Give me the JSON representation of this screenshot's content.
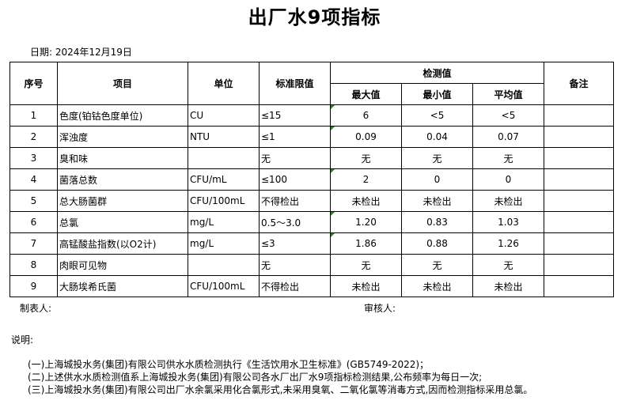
{
  "title": "出厂水9项指标",
  "date": "日期: 2024年12月19日",
  "headers": {
    "no": "序号",
    "item": "项目",
    "unit": "单位",
    "limit": "标准限值",
    "detect": "检测值",
    "max": "最大值",
    "min": "最小值",
    "avg": "平均值",
    "remark": "备注"
  },
  "rows": [
    {
      "no": "1",
      "item": "色度(铂钴色度单位)",
      "unit": "CU",
      "limit": "≤15",
      "max": "6",
      "min": "<5",
      "avg": "<5"
    },
    {
      "no": "2",
      "item": "浑浊度",
      "unit": "NTU",
      "limit": "≤1",
      "max": "0.09",
      "min": "0.04",
      "avg": "0.07"
    },
    {
      "no": "3",
      "item": "臭和味",
      "unit": "",
      "limit": "无",
      "max": "无",
      "min": "无",
      "avg": "无"
    },
    {
      "no": "4",
      "item": "菌落总数",
      "unit": "CFU/mL",
      "limit": "≤100",
      "max": "2",
      "min": "0",
      "avg": "0"
    },
    {
      "no": "5",
      "item": "总大肠菌群",
      "unit": "CFU/100mL",
      "limit": "不得检出",
      "max": "未检出",
      "min": "未检出",
      "avg": "未检出"
    },
    {
      "no": "6",
      "item": "总氯",
      "unit": "mg/L",
      "limit": "0.5～3.0",
      "max": "1.20",
      "min": "0.83",
      "avg": "1.03"
    },
    {
      "no": "7",
      "item": "高锰酸盐指数(以O2计)",
      "unit": "mg/L",
      "limit": "≤3",
      "max": "1.86",
      "min": "0.88",
      "avg": "1.26"
    },
    {
      "no": "8",
      "item": "肉眼可见物",
      "unit": "",
      "limit": "无",
      "max": "无",
      "min": "无",
      "avg": "无"
    },
    {
      "no": "9",
      "item": "大肠埃希氏菌",
      "unit": "CFU/100mL",
      "limit": "不得检出",
      "max": "未检出",
      "min": "未检出",
      "avg": "未检出"
    }
  ],
  "footer": {
    "maker": "制表人:",
    "reviewer": "审核人:"
  },
  "notes_title": "说明:",
  "notes": [
    "(一)上海城投水务(集团)有限公司供水水质检测执行《生活饮用水卫生标准》(GB5749-2022)；",
    "(二)上述供水水质检测值系上海城投水务(集团)有限公司各水厂出厂水9项指标检测结果,公布频率为每日一次;",
    "(三)上海城投水务(集团)有限公司出厂水余氯采用化合氯形式,未采用臭氧、二氧化氯等消毒方式,因而检测指标采用总氯。"
  ]
}
